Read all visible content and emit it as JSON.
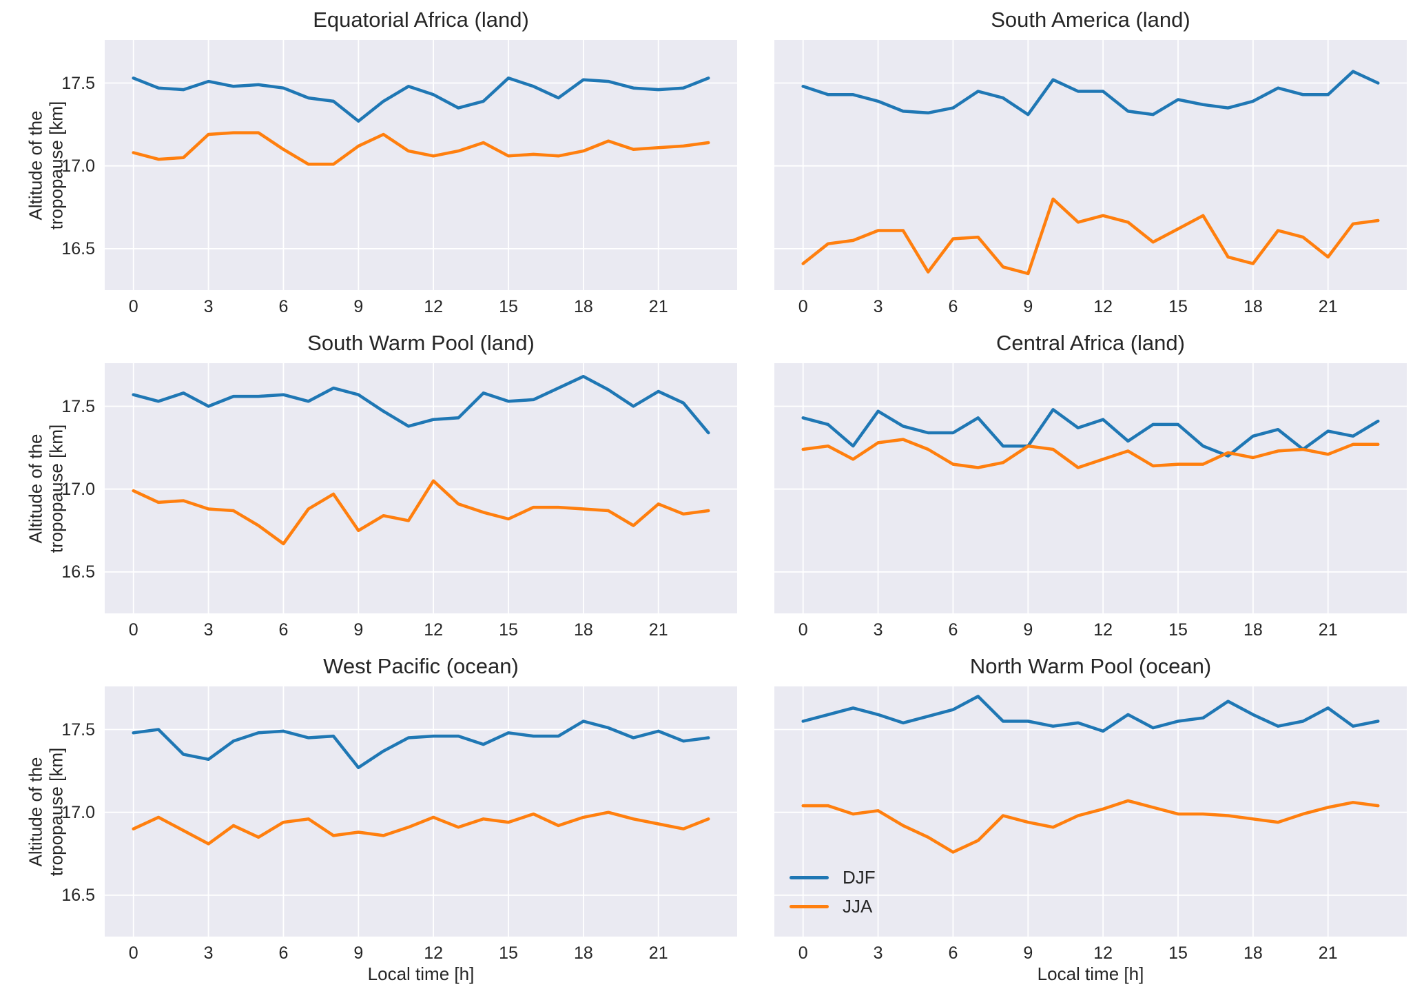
{
  "figure": {
    "ylabel_line1": "Altitude of the",
    "ylabel_line2": "tropopause [km]",
    "xlabel": "Local time [h]",
    "legend": {
      "position": "lower-left-of-last-panel",
      "items": [
        {
          "label": "DJF",
          "color": "#1f77b4"
        },
        {
          "label": "JJA",
          "color": "#ff7f0e"
        }
      ]
    },
    "colors": {
      "djf_line": "#1f77b4",
      "jja_line": "#ff7f0e",
      "panel_background": "#eaeaf2",
      "gridline": "#ffffff",
      "text": "#262626",
      "figure_background": "#ffffff"
    }
  },
  "axes": {
    "xticks": [
      0,
      3,
      6,
      9,
      12,
      15,
      18,
      21
    ],
    "yticks": [
      16.5,
      17.0,
      17.5
    ],
    "xlim": [
      -1.15,
      24.15
    ],
    "ylim": [
      16.25,
      17.76
    ],
    "grid": true
  },
  "chart_data": [
    {
      "type": "line",
      "title": "Equatorial Africa (land)",
      "x": [
        0,
        1,
        2,
        3,
        4,
        5,
        6,
        7,
        8,
        9,
        10,
        11,
        12,
        13,
        14,
        15,
        16,
        17,
        18,
        19,
        20,
        21,
        22,
        23
      ],
      "series": [
        {
          "name": "DJF",
          "color": "#1f77b4",
          "values": [
            17.53,
            17.47,
            17.46,
            17.51,
            17.48,
            17.49,
            17.47,
            17.41,
            17.39,
            17.27,
            17.39,
            17.48,
            17.43,
            17.35,
            17.39,
            17.53,
            17.48,
            17.41,
            17.52,
            17.51,
            17.47,
            17.46,
            17.47,
            17.53
          ]
        },
        {
          "name": "JJA",
          "color": "#ff7f0e",
          "values": [
            17.08,
            17.04,
            17.05,
            17.19,
            17.2,
            17.2,
            17.1,
            17.01,
            17.01,
            17.12,
            17.19,
            17.09,
            17.06,
            17.09,
            17.14,
            17.06,
            17.07,
            17.06,
            17.09,
            17.15,
            17.1,
            17.11,
            17.12,
            17.14
          ]
        }
      ]
    },
    {
      "type": "line",
      "title": "South America (land)",
      "x": [
        0,
        1,
        2,
        3,
        4,
        5,
        6,
        7,
        8,
        9,
        10,
        11,
        12,
        13,
        14,
        15,
        16,
        17,
        18,
        19,
        20,
        21,
        22,
        23
      ],
      "series": [
        {
          "name": "DJF",
          "color": "#1f77b4",
          "values": [
            17.48,
            17.43,
            17.43,
            17.39,
            17.33,
            17.32,
            17.35,
            17.45,
            17.41,
            17.31,
            17.52,
            17.45,
            17.45,
            17.33,
            17.31,
            17.4,
            17.37,
            17.35,
            17.39,
            17.47,
            17.43,
            17.43,
            17.57,
            17.5
          ]
        },
        {
          "name": "JJA",
          "color": "#ff7f0e",
          "values": [
            16.41,
            16.53,
            16.55,
            16.61,
            16.61,
            16.36,
            16.56,
            16.57,
            16.39,
            16.35,
            16.8,
            16.66,
            16.7,
            16.66,
            16.54,
            16.62,
            16.7,
            16.45,
            16.41,
            16.61,
            16.57,
            16.45,
            16.65,
            16.67
          ]
        }
      ]
    },
    {
      "type": "line",
      "title": "South Warm Pool (land)",
      "x": [
        0,
        1,
        2,
        3,
        4,
        5,
        6,
        7,
        8,
        9,
        10,
        11,
        12,
        13,
        14,
        15,
        16,
        17,
        18,
        19,
        20,
        21,
        22,
        23
      ],
      "series": [
        {
          "name": "DJF",
          "color": "#1f77b4",
          "values": [
            17.57,
            17.53,
            17.58,
            17.5,
            17.56,
            17.56,
            17.57,
            17.53,
            17.61,
            17.57,
            17.47,
            17.38,
            17.42,
            17.43,
            17.58,
            17.53,
            17.54,
            17.61,
            17.68,
            17.6,
            17.5,
            17.59,
            17.52,
            17.34
          ]
        },
        {
          "name": "JJA",
          "color": "#ff7f0e",
          "values": [
            16.99,
            16.92,
            16.93,
            16.88,
            16.87,
            16.78,
            16.67,
            16.88,
            16.97,
            16.75,
            16.84,
            16.81,
            17.05,
            16.91,
            16.86,
            16.82,
            16.89,
            16.89,
            16.88,
            16.87,
            16.78,
            16.91,
            16.85,
            16.87
          ]
        }
      ]
    },
    {
      "type": "line",
      "title": "Central Africa (land)",
      "x": [
        0,
        1,
        2,
        3,
        4,
        5,
        6,
        7,
        8,
        9,
        10,
        11,
        12,
        13,
        14,
        15,
        16,
        17,
        18,
        19,
        20,
        21,
        22,
        23
      ],
      "series": [
        {
          "name": "DJF",
          "color": "#1f77b4",
          "values": [
            17.43,
            17.39,
            17.26,
            17.47,
            17.38,
            17.34,
            17.34,
            17.43,
            17.26,
            17.26,
            17.48,
            17.37,
            17.42,
            17.29,
            17.39,
            17.39,
            17.26,
            17.2,
            17.32,
            17.36,
            17.24,
            17.35,
            17.32,
            17.41
          ]
        },
        {
          "name": "JJA",
          "color": "#ff7f0e",
          "values": [
            17.24,
            17.26,
            17.18,
            17.28,
            17.3,
            17.24,
            17.15,
            17.13,
            17.16,
            17.26,
            17.24,
            17.13,
            17.18,
            17.23,
            17.14,
            17.15,
            17.15,
            17.22,
            17.19,
            17.23,
            17.24,
            17.21,
            17.27,
            17.27
          ]
        }
      ]
    },
    {
      "type": "line",
      "title": "West Pacific (ocean)",
      "x": [
        0,
        1,
        2,
        3,
        4,
        5,
        6,
        7,
        8,
        9,
        10,
        11,
        12,
        13,
        14,
        15,
        16,
        17,
        18,
        19,
        20,
        21,
        22,
        23
      ],
      "series": [
        {
          "name": "DJF",
          "color": "#1f77b4",
          "values": [
            17.48,
            17.5,
            17.35,
            17.32,
            17.43,
            17.48,
            17.49,
            17.45,
            17.46,
            17.27,
            17.37,
            17.45,
            17.46,
            17.46,
            17.41,
            17.48,
            17.46,
            17.46,
            17.55,
            17.51,
            17.45,
            17.49,
            17.43,
            17.45
          ]
        },
        {
          "name": "JJA",
          "color": "#ff7f0e",
          "values": [
            16.9,
            16.97,
            16.89,
            16.81,
            16.92,
            16.85,
            16.94,
            16.96,
            16.86,
            16.88,
            16.86,
            16.91,
            16.97,
            16.91,
            16.96,
            16.94,
            16.99,
            16.92,
            16.97,
            17.0,
            16.96,
            16.93,
            16.9,
            16.96
          ]
        }
      ]
    },
    {
      "type": "line",
      "title": "North Warm Pool (ocean)",
      "x": [
        0,
        1,
        2,
        3,
        4,
        5,
        6,
        7,
        8,
        9,
        10,
        11,
        12,
        13,
        14,
        15,
        16,
        17,
        18,
        19,
        20,
        21,
        22,
        23
      ],
      "series": [
        {
          "name": "DJF",
          "color": "#1f77b4",
          "values": [
            17.55,
            17.59,
            17.63,
            17.59,
            17.54,
            17.58,
            17.62,
            17.7,
            17.55,
            17.55,
            17.52,
            17.54,
            17.49,
            17.59,
            17.51,
            17.55,
            17.57,
            17.67,
            17.59,
            17.52,
            17.55,
            17.63,
            17.52,
            17.55
          ]
        },
        {
          "name": "JJA",
          "color": "#ff7f0e",
          "values": [
            17.04,
            17.04,
            16.99,
            17.01,
            16.92,
            16.85,
            16.76,
            16.83,
            16.98,
            16.94,
            16.91,
            16.98,
            17.02,
            17.07,
            17.03,
            16.99,
            16.99,
            16.98,
            16.96,
            16.94,
            16.99,
            17.03,
            17.06,
            17.04
          ]
        }
      ]
    }
  ]
}
